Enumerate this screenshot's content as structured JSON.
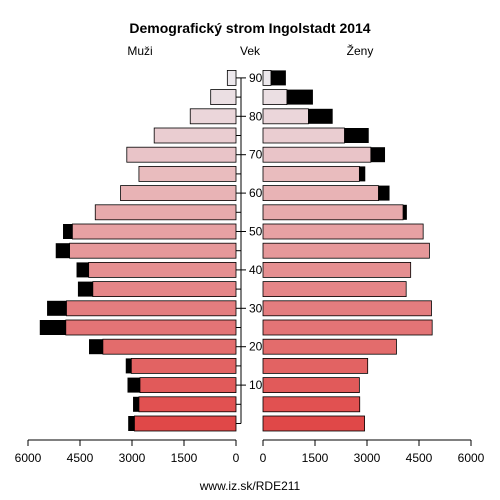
{
  "chart_data": {
    "type": "bar",
    "title": "Demografický strom Ingolstadt 2014",
    "left_label": "Muži",
    "center_label": "Vek",
    "right_label": "Ženy",
    "footer": "www.iz.sk/RDE211",
    "x_ticks_left": [
      "6000",
      "4500",
      "3000",
      "1500",
      "0"
    ],
    "x_ticks_right": [
      "0",
      "1500",
      "3000",
      "4500",
      "6000"
    ],
    "x_tick_values": [
      6000,
      4500,
      3000,
      1500,
      0
    ],
    "xlim": [
      0,
      6000
    ],
    "age_ticks": [
      "10",
      "20",
      "30",
      "40",
      "50",
      "60",
      "70",
      "80",
      "90"
    ],
    "age_groups": [
      "0-4",
      "5-9",
      "10-14",
      "15-19",
      "20-24",
      "25-29",
      "30-34",
      "35-39",
      "40-44",
      "45-49",
      "50-54",
      "55-59",
      "60-64",
      "65-69",
      "70-74",
      "75-79",
      "80-84",
      "85-89",
      "90+"
    ],
    "series": [
      {
        "name": "Muži",
        "side": "left",
        "values": [
          2930,
          2800,
          2770,
          3020,
          3840,
          4910,
          4890,
          4130,
          4250,
          4800,
          4720,
          4060,
          3330,
          2800,
          3150,
          2360,
          1320,
          730,
          250
        ],
        "extra": [
          180,
          170,
          360,
          160,
          400,
          750,
          560,
          430,
          350,
          400,
          270,
          0,
          0,
          0,
          0,
          0,
          0,
          0,
          0
        ]
      },
      {
        "name": "Ženy",
        "side": "right",
        "values": [
          2930,
          2790,
          2780,
          3020,
          3850,
          4880,
          4860,
          4130,
          4260,
          4800,
          4620,
          4040,
          3330,
          2780,
          3110,
          2350,
          1310,
          690,
          230
        ],
        "extra": [
          0,
          0,
          0,
          0,
          0,
          0,
          0,
          0,
          0,
          0,
          0,
          110,
          320,
          170,
          410,
          700,
          700,
          750,
          430
        ]
      }
    ],
    "colors": {
      "young": "#e04848",
      "old": "#ece8ec",
      "extra": "#000000"
    }
  }
}
